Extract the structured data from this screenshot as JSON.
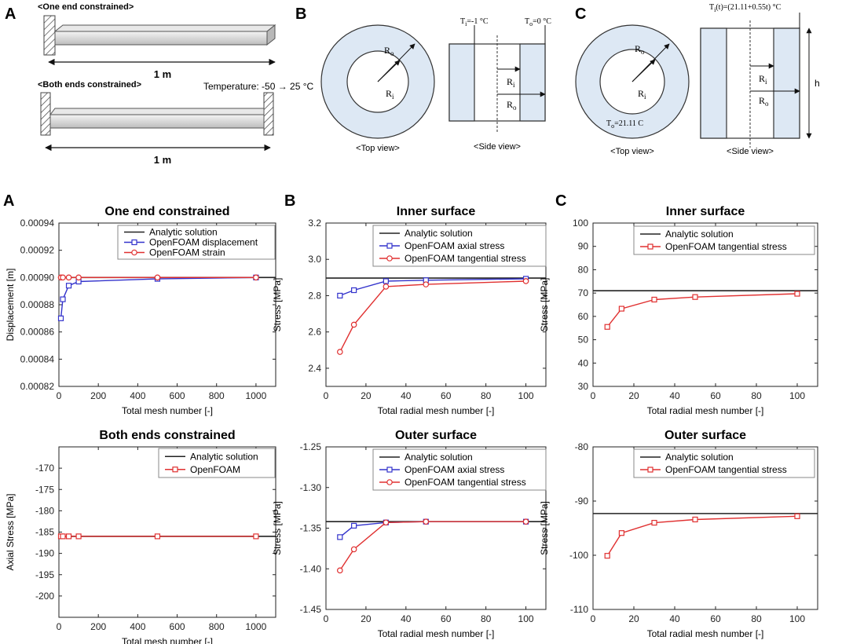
{
  "colors": {
    "analytic": "#222222",
    "blue": "#3333cc",
    "red": "#e03030",
    "panel_fill": "#dde8f4"
  },
  "schematics": {
    "A": {
      "letter": "A",
      "one_end_label": "<One end constrained>",
      "both_ends_label": "<Both ends constrained>",
      "length_label_1": "1 m",
      "length_label_2": "1 m",
      "temperature_label": "Temperature: -50 → 25 °C"
    },
    "B": {
      "letter": "B",
      "ro_label": "R",
      "ro_sub": "o",
      "ri_label": "R",
      "ri_sub": "i",
      "top_view_label": "<Top view>",
      "side_view_label": "<Side view>",
      "ti_label": "T",
      "ti_sub": "i",
      "ti_value": "=-1 °C",
      "to_label": "T",
      "to_sub": "o",
      "to_value": "=0 °C",
      "side_ri_label": "R",
      "side_ri_sub": "i",
      "side_ro_label": "R",
      "side_ro_sub": "o"
    },
    "C": {
      "letter": "C",
      "ti_label": "T",
      "ti_sub": "i",
      "ti_value": "(t)=(21.11+0.55t) °C",
      "ro_label": "R",
      "ro_sub": "o",
      "ri_label": "R",
      "ri_sub": "i",
      "to_label": "T",
      "to_sub": "o",
      "to_value": "=21.11 C",
      "top_view_label": "<Top view>",
      "side_view_label": "<Side view>",
      "side_ri_label": "R",
      "side_ri_sub": "i",
      "side_ro_label": "R",
      "side_ro_sub": "o",
      "h_label": "h"
    }
  },
  "chart_data": [
    {
      "id": "a1",
      "panel_letter": "A",
      "type": "line",
      "title": "One end constrained",
      "xlabel": "Total mesh number [-]",
      "ylabel": "Displacement [m]",
      "xlim": [
        0,
        1100
      ],
      "ylim": [
        0.00082,
        0.00094
      ],
      "xticks": [
        0,
        200,
        400,
        600,
        800,
        1000
      ],
      "xtick_labels": [
        "0",
        "200",
        "400",
        "600",
        "800",
        "1000"
      ],
      "yticks": [
        0.00082,
        0.00084,
        0.00086,
        0.00088,
        0.0009,
        0.00092,
        0.00094
      ],
      "ytick_labels": [
        "0.00082",
        "0.00084",
        "0.00086",
        "0.00088",
        "0.00090",
        "0.00092",
        "0.00094"
      ],
      "analytic": 0.0009,
      "legend": [
        "Analytic solution",
        "OpenFOAM displacement",
        "OpenFOAM strain"
      ],
      "series": [
        {
          "name": "OpenFOAM displacement",
          "color": "blue",
          "marker": "square",
          "x": [
            10,
            20,
            50,
            100,
            500,
            1000
          ],
          "y": [
            0.00087,
            0.000884,
            0.000894,
            0.000897,
            0.000899,
            0.0009
          ]
        },
        {
          "name": "OpenFOAM strain",
          "color": "red",
          "marker": "circle",
          "x": [
            10,
            20,
            50,
            100,
            500,
            1000
          ],
          "y": [
            0.0009,
            0.0009,
            0.0009,
            0.0009,
            0.0009,
            0.0009
          ]
        }
      ]
    },
    {
      "id": "b1",
      "panel_letter": "B",
      "type": "line",
      "title": "Inner surface",
      "xlabel": "Total radial mesh number [-]",
      "ylabel": "Stress [MPa]",
      "xlim": [
        0,
        110
      ],
      "ylim": [
        2.3,
        3.2
      ],
      "xticks": [
        0,
        20,
        40,
        60,
        80,
        100
      ],
      "xtick_labels": [
        "0",
        "20",
        "40",
        "60",
        "80",
        "100"
      ],
      "yticks": [
        2.4,
        2.6,
        2.8,
        3.0,
        3.2
      ],
      "ytick_labels": [
        "2.4",
        "2.6",
        "2.8",
        "3.0",
        "3.2"
      ],
      "analytic": 2.897,
      "legend": [
        "Analytic solution",
        "OpenFOAM axial stress",
        "OpenFOAM tangential stress"
      ],
      "series": [
        {
          "name": "OpenFOAM axial stress",
          "color": "blue",
          "marker": "square",
          "x": [
            7,
            14,
            30,
            50,
            100
          ],
          "y": [
            2.8,
            2.83,
            2.88,
            2.885,
            2.893
          ]
        },
        {
          "name": "OpenFOAM tangential stress",
          "color": "red",
          "marker": "circle",
          "x": [
            7,
            14,
            30,
            50,
            100
          ],
          "y": [
            2.49,
            2.64,
            2.85,
            2.862,
            2.88
          ]
        }
      ]
    },
    {
      "id": "c1",
      "panel_letter": "C",
      "type": "line",
      "title": "Inner surface",
      "xlabel": "Total radial mesh number [-]",
      "ylabel": "Stress [MPa]",
      "xlim": [
        0,
        110
      ],
      "ylim": [
        30,
        100
      ],
      "xticks": [
        0,
        20,
        40,
        60,
        80,
        100
      ],
      "xtick_labels": [
        "0",
        "20",
        "40",
        "60",
        "80",
        "100"
      ],
      "yticks": [
        30,
        40,
        50,
        60,
        70,
        80,
        90,
        100
      ],
      "ytick_labels": [
        "30",
        "40",
        "50",
        "60",
        "70",
        "80",
        "90",
        "100"
      ],
      "analytic": 71,
      "legend": [
        "Analytic solution",
        "OpenFOAM tangential stress"
      ],
      "series": [
        {
          "name": "OpenFOAM tangential stress",
          "color": "red",
          "marker": "square",
          "x": [
            7,
            14,
            30,
            50,
            100
          ],
          "y": [
            55.5,
            63.3,
            67.2,
            68.3,
            69.7
          ]
        }
      ]
    },
    {
      "id": "a2",
      "panel_letter": "",
      "type": "line",
      "title": "Both ends constrained",
      "xlabel": "Total mesh number [-]",
      "ylabel": "Axial Stress [MPa]",
      "xlim": [
        0,
        1100
      ],
      "ylim": [
        -205,
        -165
      ],
      "xticks": [
        0,
        200,
        400,
        600,
        800,
        1000
      ],
      "xtick_labels": [
        "0",
        "200",
        "400",
        "600",
        "800",
        "1000"
      ],
      "yticks": [
        -205,
        -200,
        -195,
        -190,
        -185,
        -180,
        -175,
        -170,
        -165
      ],
      "ytick_labels": [
        "",
        "-200",
        "-195",
        "-190",
        "-185",
        "-180",
        "-175",
        "-170",
        ""
      ],
      "analytic": -186,
      "legend": [
        "Analytic solution",
        "OpenFOAM"
      ],
      "series": [
        {
          "name": "OpenFOAM",
          "color": "red",
          "marker": "square",
          "x": [
            10,
            20,
            50,
            100,
            500,
            1000
          ],
          "y": [
            -186,
            -186,
            -186,
            -186,
            -186,
            -186
          ]
        }
      ]
    },
    {
      "id": "b2",
      "panel_letter": "",
      "type": "line",
      "title": "Outer surface",
      "xlabel": "Total radial mesh number [-]",
      "ylabel": "Stress [MPa]",
      "xlim": [
        0,
        110
      ],
      "ylim": [
        -1.45,
        -1.25
      ],
      "xticks": [
        0,
        20,
        40,
        60,
        80,
        100
      ],
      "xtick_labels": [
        "0",
        "20",
        "40",
        "60",
        "80",
        "100"
      ],
      "yticks": [
        -1.45,
        -1.4,
        -1.35,
        -1.3,
        -1.25
      ],
      "ytick_labels": [
        "-1.45",
        "-1.40",
        "-1.35",
        "-1.30",
        "-1.25"
      ],
      "analytic": -1.342,
      "legend": [
        "Analytic solution",
        "OpenFOAM axial stress",
        "OpenFOAM tangential stress"
      ],
      "series": [
        {
          "name": "OpenFOAM axial stress",
          "color": "blue",
          "marker": "square",
          "x": [
            7,
            14,
            30,
            50,
            100
          ],
          "y": [
            -1.361,
            -1.347,
            -1.343,
            -1.342,
            -1.342
          ]
        },
        {
          "name": "OpenFOAM tangential stress",
          "color": "red",
          "marker": "circle",
          "x": [
            7,
            14,
            30,
            50,
            100
          ],
          "y": [
            -1.402,
            -1.376,
            -1.343,
            -1.342,
            -1.342
          ]
        }
      ]
    },
    {
      "id": "c2",
      "panel_letter": "",
      "type": "line",
      "title": "Outer surface",
      "xlabel": "Total radial mesh number [-]",
      "ylabel": "Stress [MPa]",
      "xlim": [
        0,
        110
      ],
      "ylim": [
        -110,
        -80
      ],
      "xticks": [
        0,
        20,
        40,
        60,
        80,
        100
      ],
      "xtick_labels": [
        "0",
        "20",
        "40",
        "60",
        "80",
        "100"
      ],
      "yticks": [
        -110,
        -100,
        -90,
        -80
      ],
      "ytick_labels": [
        "-110",
        "-100",
        "-90",
        "-80"
      ],
      "analytic": -92.3,
      "legend": [
        "Analytic solution",
        "OpenFOAM tangential stress"
      ],
      "series": [
        {
          "name": "OpenFOAM tangential stress",
          "color": "red",
          "marker": "square",
          "x": [
            7,
            14,
            30,
            50,
            100
          ],
          "y": [
            -100.1,
            -95.9,
            -94.0,
            -93.4,
            -92.8
          ]
        }
      ]
    }
  ]
}
